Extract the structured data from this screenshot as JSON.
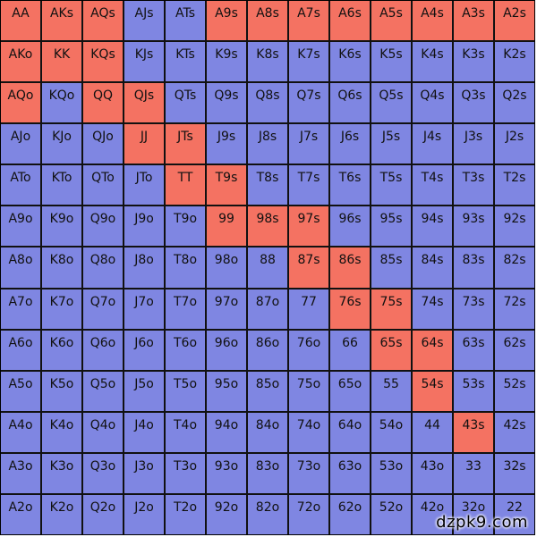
{
  "colors": {
    "raise": "#f47262",
    "fold": "#7f86e2",
    "grid_line": "#111111"
  },
  "grid": {
    "rows": [
      [
        "AA",
        "AKs",
        "AQs",
        "AJs",
        "ATs",
        "A9s",
        "A8s",
        "A7s",
        "A6s",
        "A5s",
        "A4s",
        "A3s",
        "A2s"
      ],
      [
        "AKo",
        "KK",
        "KQs",
        "KJs",
        "KTs",
        "K9s",
        "K8s",
        "K7s",
        "K6s",
        "K5s",
        "K4s",
        "K3s",
        "K2s"
      ],
      [
        "AQo",
        "KQo",
        "QQ",
        "QJs",
        "QTs",
        "Q9s",
        "Q8s",
        "Q7s",
        "Q6s",
        "Q5s",
        "Q4s",
        "Q3s",
        "Q2s"
      ],
      [
        "AJo",
        "KJo",
        "QJo",
        "JJ",
        "JTs",
        "J9s",
        "J8s",
        "J7s",
        "J6s",
        "J5s",
        "J4s",
        "J3s",
        "J2s"
      ],
      [
        "ATo",
        "KTo",
        "QTo",
        "JTo",
        "TT",
        "T9s",
        "T8s",
        "T7s",
        "T6s",
        "T5s",
        "T4s",
        "T3s",
        "T2s"
      ],
      [
        "A9o",
        "K9o",
        "Q9o",
        "J9o",
        "T9o",
        "99",
        "98s",
        "97s",
        "96s",
        "95s",
        "94s",
        "93s",
        "92s"
      ],
      [
        "A8o",
        "K8o",
        "Q8o",
        "J8o",
        "T8o",
        "98o",
        "88",
        "87s",
        "86s",
        "85s",
        "84s",
        "83s",
        "82s"
      ],
      [
        "A7o",
        "K7o",
        "Q7o",
        "J7o",
        "T7o",
        "97o",
        "87o",
        "77",
        "76s",
        "75s",
        "74s",
        "73s",
        "72s"
      ],
      [
        "A6o",
        "K6o",
        "Q6o",
        "J6o",
        "T6o",
        "96o",
        "86o",
        "76o",
        "66",
        "65s",
        "64s",
        "63s",
        "62s"
      ],
      [
        "A5o",
        "K5o",
        "Q5o",
        "J5o",
        "T5o",
        "95o",
        "85o",
        "75o",
        "65o",
        "55",
        "54s",
        "53s",
        "52s"
      ],
      [
        "A4o",
        "K4o",
        "Q4o",
        "J4o",
        "T4o",
        "94o",
        "84o",
        "74o",
        "64o",
        "54o",
        "44",
        "43s",
        "42s"
      ],
      [
        "A3o",
        "K3o",
        "Q3o",
        "J3o",
        "T3o",
        "93o",
        "83o",
        "73o",
        "63o",
        "53o",
        "43o",
        "33",
        "32s"
      ],
      [
        "A2o",
        "K2o",
        "Q2o",
        "J2o",
        "T2o",
        "92o",
        "82o",
        "72o",
        "62o",
        "52o",
        "42o",
        "32o",
        "22"
      ]
    ],
    "highlighted": [
      "AA",
      "AKs",
      "AQs",
      "A9s",
      "A8s",
      "A7s",
      "A6s",
      "A5s",
      "A4s",
      "A3s",
      "A2s",
      "AKo",
      "KK",
      "KQs",
      "AQo",
      "QQ",
      "QJs",
      "JJ",
      "JTs",
      "TT",
      "T9s",
      "99",
      "98s",
      "97s",
      "87s",
      "86s",
      "76s",
      "75s",
      "65s",
      "64s",
      "54s",
      "43s"
    ]
  },
  "watermark": "dzpk9.com"
}
